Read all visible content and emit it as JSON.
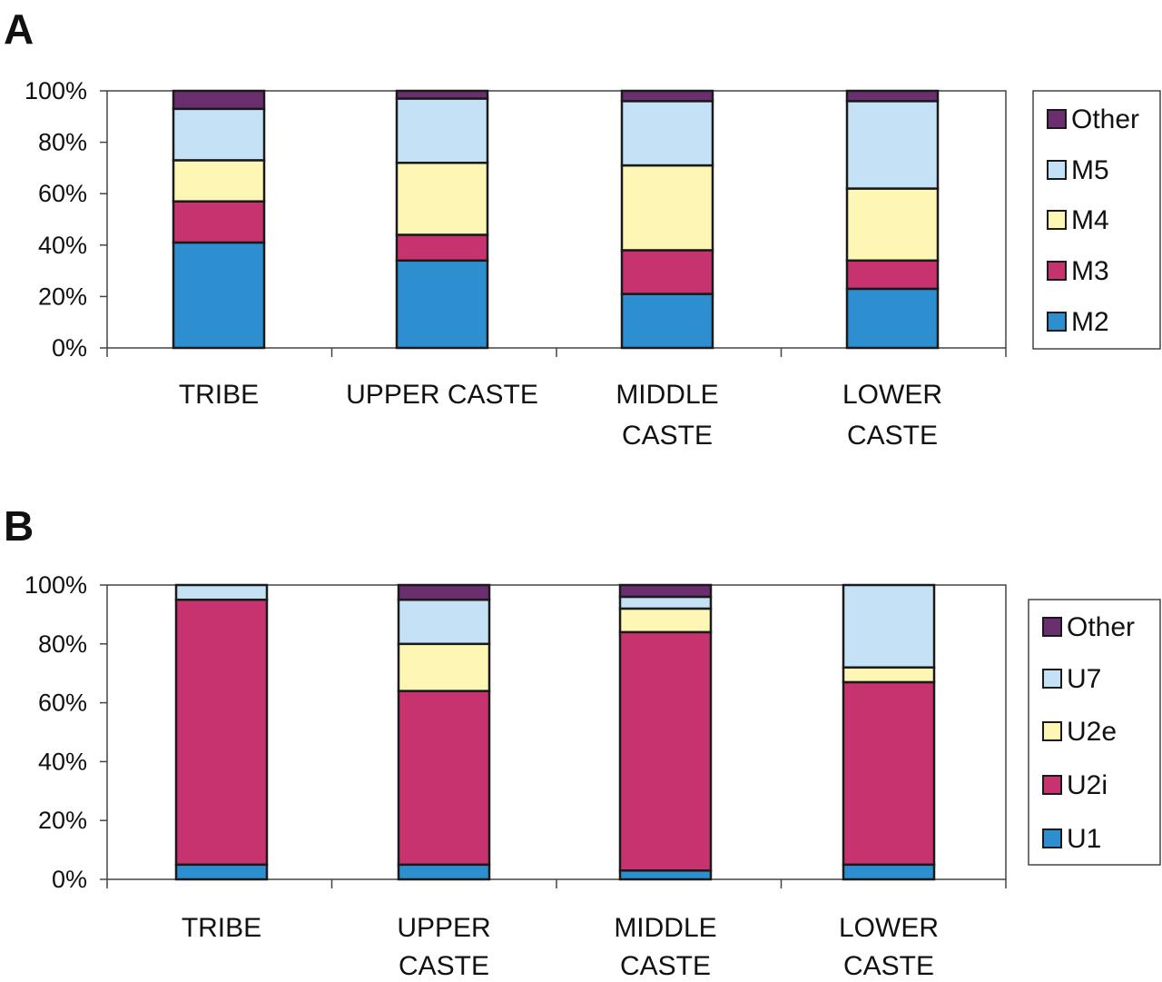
{
  "colors": {
    "Other": "#6b2e6e",
    "M5": "#c5e1f5",
    "M4": "#fdf6b5",
    "M3": "#c7336f",
    "M2": "#2d8fcf",
    "U7": "#c5e1f5",
    "U2e": "#fdf6b5",
    "U2i": "#c7336f",
    "U1": "#2d8fcf"
  },
  "chart_data": [
    {
      "type": "bar",
      "stacked": true,
      "percent": true,
      "panel_label": "A",
      "categories": [
        [
          "TRIBE"
        ],
        [
          "UPPER CASTE"
        ],
        [
          "MIDDLE",
          "CASTE"
        ],
        [
          "LOWER",
          "CASTE"
        ]
      ],
      "y_ticks": [
        "0%",
        "20%",
        "40%",
        "60%",
        "80%",
        "100%"
      ],
      "ylim": [
        0,
        100
      ],
      "legend_position": "right",
      "series": [
        {
          "name": "M2",
          "values": [
            41,
            34,
            21,
            23
          ]
        },
        {
          "name": "M3",
          "values": [
            16,
            10,
            17,
            11
          ]
        },
        {
          "name": "M4",
          "values": [
            16,
            28,
            33,
            28
          ]
        },
        {
          "name": "M5",
          "values": [
            20,
            25,
            25,
            34
          ]
        },
        {
          "name": "Other",
          "values": [
            7,
            3,
            4,
            4
          ]
        }
      ]
    },
    {
      "type": "bar",
      "stacked": true,
      "percent": true,
      "panel_label": "B",
      "categories": [
        [
          "TRIBE"
        ],
        [
          "UPPER",
          "CASTE"
        ],
        [
          "MIDDLE",
          "CASTE"
        ],
        [
          "LOWER",
          "CASTE"
        ]
      ],
      "y_ticks": [
        "0%",
        "20%",
        "40%",
        "60%",
        "80%",
        "100%"
      ],
      "ylim": [
        0,
        100
      ],
      "legend_position": "right",
      "series": [
        {
          "name": "U1",
          "values": [
            5,
            5,
            3,
            5
          ]
        },
        {
          "name": "U2i",
          "values": [
            90,
            59,
            81,
            62
          ]
        },
        {
          "name": "U2e",
          "values": [
            0,
            16,
            8,
            5
          ]
        },
        {
          "name": "U7",
          "values": [
            5,
            15,
            4,
            28
          ]
        },
        {
          "name": "Other",
          "values": [
            0,
            5,
            4,
            0
          ]
        }
      ]
    }
  ]
}
